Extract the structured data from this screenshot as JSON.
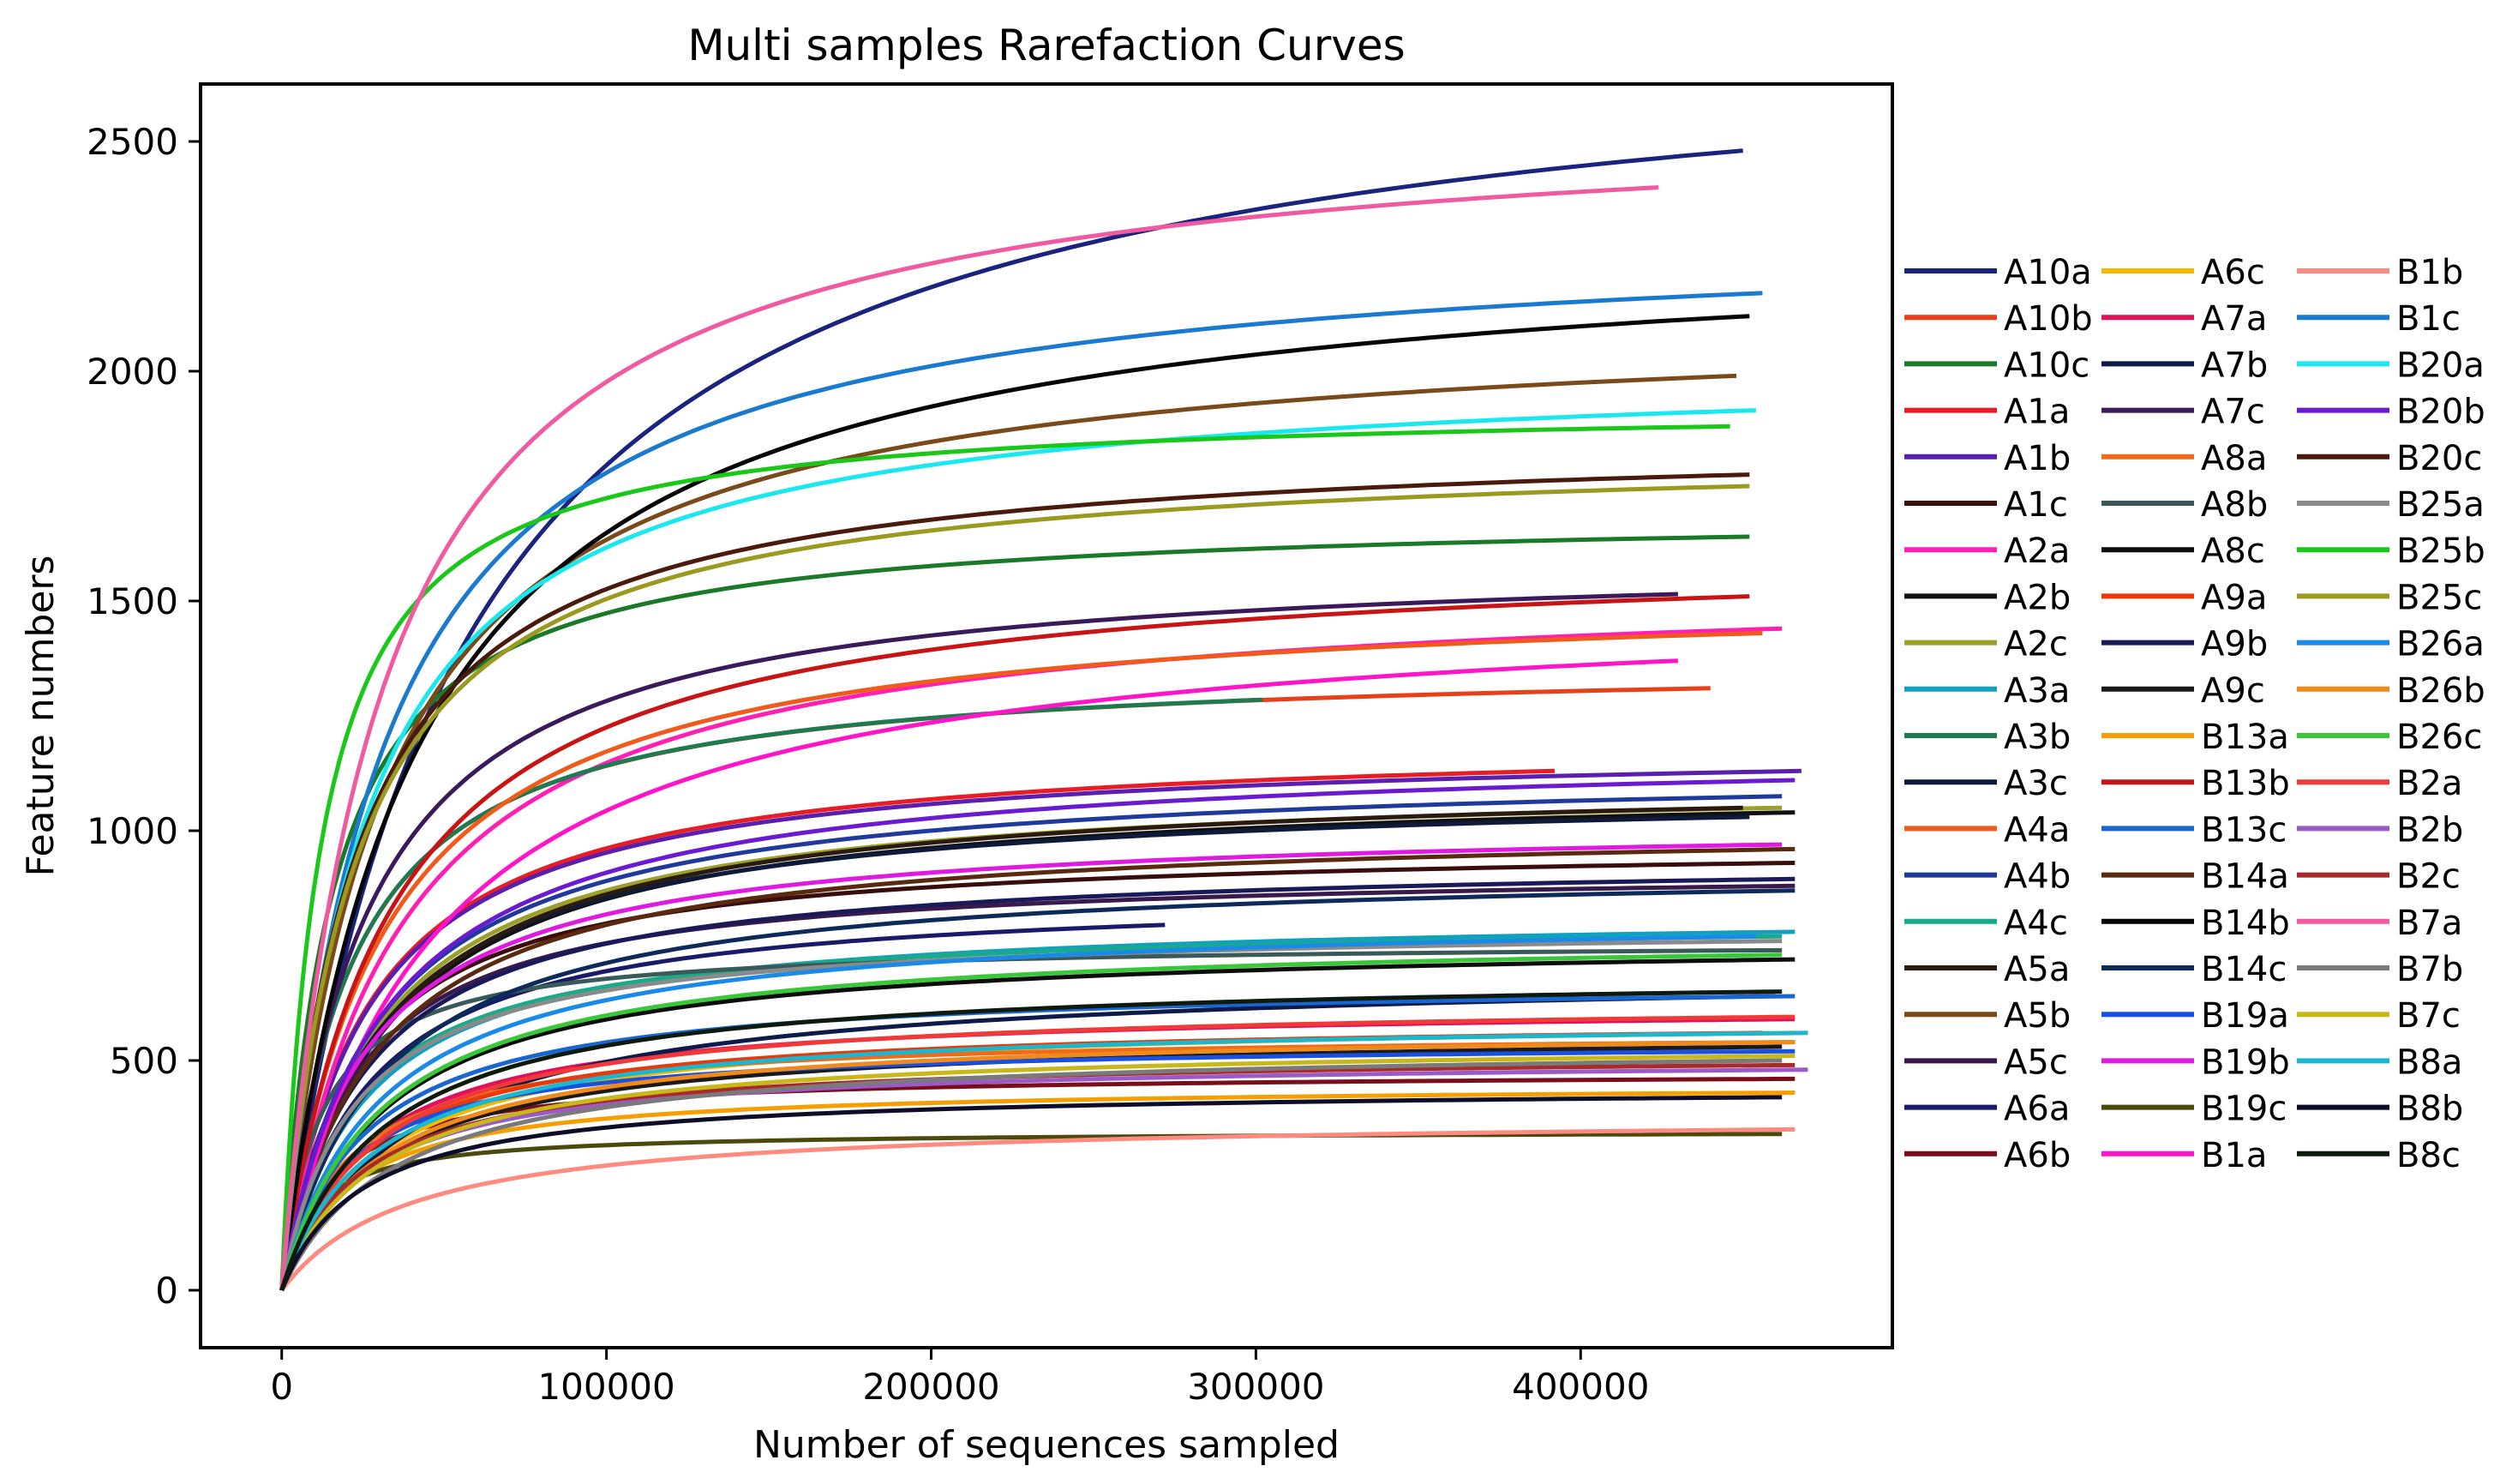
{
  "chart_data": {
    "type": "line",
    "title": "Multi samples Rarefaction Curves",
    "xlabel": "Number of sequences sampled",
    "ylabel": "Feature numbers",
    "xlim": [
      -25000,
      496000
    ],
    "ylim": [
      -125,
      2625
    ],
    "xticks": [
      0,
      100000,
      200000,
      300000,
      400000
    ],
    "xtick_labels": [
      "0",
      "100000",
      "200000",
      "300000",
      "400000"
    ],
    "yticks": [
      0,
      500,
      1000,
      1500,
      2000,
      2500
    ],
    "ytick_labels": [
      "0",
      "500",
      "1000",
      "1500",
      "2000",
      "2500"
    ],
    "grid": false,
    "legend_position": "right",
    "series": [
      {
        "name": "A10a",
        "color": "#1a237e",
        "max_x": 450000,
        "final_y": 2480,
        "k": 55000
      },
      {
        "name": "A10b",
        "color": "#e8401a",
        "max_x": 440000,
        "final_y": 1310,
        "k": 20000
      },
      {
        "name": "A10c",
        "color": "#1b7a2a",
        "max_x": 452000,
        "final_y": 1640,
        "k": 15000
      },
      {
        "name": "A1a",
        "color": "#e81c24",
        "max_x": 392000,
        "final_y": 1130,
        "k": 25000
      },
      {
        "name": "A1b",
        "color": "#5b1fb0",
        "max_x": 468000,
        "final_y": 1130,
        "k": 25000
      },
      {
        "name": "A1c",
        "color": "#3a0d0d",
        "max_x": 466000,
        "final_y": 930,
        "k": 22000
      },
      {
        "name": "A2a",
        "color": "#ff1fb2",
        "max_x": 462000,
        "final_y": 1440,
        "k": 35000
      },
      {
        "name": "A2b",
        "color": "#111111",
        "max_x": 466000,
        "final_y": 1040,
        "k": 30000
      },
      {
        "name": "A2c",
        "color": "#9aa02a",
        "max_x": 462000,
        "final_y": 1050,
        "k": 28000
      },
      {
        "name": "A3a",
        "color": "#11a0c0",
        "max_x": 466000,
        "final_y": 780,
        "k": 25000
      },
      {
        "name": "A3b",
        "color": "#1e7a50",
        "max_x": 302000,
        "final_y": 1285,
        "k": 20000
      },
      {
        "name": "A3c",
        "color": "#0d1a3a",
        "max_x": 452000,
        "final_y": 1030,
        "k": 28000
      },
      {
        "name": "A4a",
        "color": "#f05a1a",
        "max_x": 456000,
        "final_y": 1430,
        "k": 30000
      },
      {
        "name": "A4b",
        "color": "#1f3a9a",
        "max_x": 462000,
        "final_y": 1075,
        "k": 28000
      },
      {
        "name": "A4c",
        "color": "#1aaa8a",
        "max_x": 462000,
        "final_y": 770,
        "k": 22000
      },
      {
        "name": "A5a",
        "color": "#2a1a10",
        "max_x": 450000,
        "final_y": 1050,
        "k": 30000
      },
      {
        "name": "A5b",
        "color": "#7a4a1a",
        "max_x": 448000,
        "final_y": 1990,
        "k": 30000
      },
      {
        "name": "A5c",
        "color": "#3a1a4a",
        "max_x": 466000,
        "final_y": 880,
        "k": 22000
      },
      {
        "name": "A6a",
        "color": "#1a1a6a",
        "max_x": 272000,
        "final_y": 795,
        "k": 25000
      },
      {
        "name": "A6b",
        "color": "#7a0d1a",
        "max_x": 466000,
        "final_y": 460,
        "k": 15000
      },
      {
        "name": "A6c",
        "color": "#f5b800",
        "max_x": 466000,
        "final_y": 560,
        "k": 30000
      },
      {
        "name": "A7a",
        "color": "#e0135a",
        "max_x": 466000,
        "final_y": 590,
        "k": 25000
      },
      {
        "name": "A7b",
        "color": "#0d1a4a",
        "max_x": 460000,
        "final_y": 640,
        "k": 40000
      },
      {
        "name": "A7c",
        "color": "#3a1a5a",
        "max_x": 430000,
        "final_y": 1515,
        "k": 25000
      },
      {
        "name": "A8a",
        "color": "#f06a1a",
        "max_x": 466000,
        "final_y": 540,
        "k": 20000
      },
      {
        "name": "A8b",
        "color": "#3a5a5a",
        "max_x": 462000,
        "final_y": 740,
        "k": 12000
      },
      {
        "name": "A8c",
        "color": "#0d0d0d",
        "max_x": 466000,
        "final_y": 720,
        "k": 30000
      },
      {
        "name": "A9a",
        "color": "#e83a0a",
        "max_x": 456000,
        "final_y": 560,
        "k": 25000
      },
      {
        "name": "A9b",
        "color": "#1a1a5a",
        "max_x": 466000,
        "final_y": 895,
        "k": 25000
      },
      {
        "name": "A9c",
        "color": "#1a1a1a",
        "max_x": 462000,
        "final_y": 530,
        "k": 30000
      },
      {
        "name": "B13a",
        "color": "#f5a000",
        "max_x": 466000,
        "final_y": 430,
        "k": 20000
      },
      {
        "name": "B13b",
        "color": "#c81414",
        "max_x": 452000,
        "final_y": 1510,
        "k": 32000
      },
      {
        "name": "B13c",
        "color": "#1a66d0",
        "max_x": 466000,
        "final_y": 640,
        "k": 25000
      },
      {
        "name": "B14a",
        "color": "#5a2a10",
        "max_x": 466000,
        "final_y": 960,
        "k": 28000
      },
      {
        "name": "B14b",
        "color": "#050505",
        "max_x": 452000,
        "final_y": 2120,
        "k": 40000
      },
      {
        "name": "B14c",
        "color": "#0d2a5a",
        "max_x": 466000,
        "final_y": 870,
        "k": 30000
      },
      {
        "name": "B19a",
        "color": "#1a50e0",
        "max_x": 466000,
        "final_y": 520,
        "k": 20000
      },
      {
        "name": "B19b",
        "color": "#e01ae0",
        "max_x": 462000,
        "final_y": 970,
        "k": 25000
      },
      {
        "name": "B19c",
        "color": "#4a4a0d",
        "max_x": 462000,
        "final_y": 340,
        "k": 10000
      },
      {
        "name": "B1a",
        "color": "#ff14c8",
        "max_x": 430000,
        "final_y": 1370,
        "k": 45000
      },
      {
        "name": "B1b",
        "color": "#ff8a80",
        "max_x": 466000,
        "final_y": 350,
        "k": 40000
      },
      {
        "name": "B1c",
        "color": "#1a7ad0",
        "max_x": 456000,
        "final_y": 2170,
        "k": 30000
      },
      {
        "name": "B20a",
        "color": "#1ae8f0",
        "max_x": 454000,
        "final_y": 1915,
        "k": 25000
      },
      {
        "name": "B20b",
        "color": "#6a1ad0",
        "max_x": 466000,
        "final_y": 1110,
        "k": 30000
      },
      {
        "name": "B20c",
        "color": "#4a1a0d",
        "max_x": 452000,
        "final_y": 1775,
        "k": 22000
      },
      {
        "name": "B25a",
        "color": "#8a8a8a",
        "max_x": 462000,
        "final_y": 760,
        "k": 22000
      },
      {
        "name": "B25b",
        "color": "#1ac81a",
        "max_x": 446000,
        "final_y": 1880,
        "k": 12000
      },
      {
        "name": "B25c",
        "color": "#9a9a20",
        "max_x": 452000,
        "final_y": 1750,
        "k": 22000
      },
      {
        "name": "B26a",
        "color": "#1a8ae8",
        "max_x": 454000,
        "final_y": 770,
        "k": 30000
      },
      {
        "name": "B26b",
        "color": "#f08a1a",
        "max_x": 466000,
        "final_y": 540,
        "k": 30000
      },
      {
        "name": "B26c",
        "color": "#3ac83a",
        "max_x": 462000,
        "final_y": 730,
        "k": 30000
      },
      {
        "name": "B2a",
        "color": "#f03a3a",
        "max_x": 466000,
        "final_y": 595,
        "k": 28000
      },
      {
        "name": "B2b",
        "color": "#9a5ac8",
        "max_x": 470000,
        "final_y": 480,
        "k": 25000
      },
      {
        "name": "B2c",
        "color": "#a82a2a",
        "max_x": 466000,
        "final_y": 490,
        "k": 25000
      },
      {
        "name": "B7a",
        "color": "#f05aa0",
        "max_x": 424000,
        "final_y": 2400,
        "k": 30000
      },
      {
        "name": "B7b",
        "color": "#7a7a7a",
        "max_x": 462000,
        "final_y": 500,
        "k": 35000
      },
      {
        "name": "B7c",
        "color": "#c8b81a",
        "max_x": 466000,
        "final_y": 510,
        "k": 30000
      },
      {
        "name": "B8a",
        "color": "#1ab8d0",
        "max_x": 470000,
        "final_y": 560,
        "k": 28000
      },
      {
        "name": "B8b",
        "color": "#0d0d2a",
        "max_x": 462000,
        "final_y": 420,
        "k": 25000
      },
      {
        "name": "B8c",
        "color": "#0d1a0d",
        "max_x": 462000,
        "final_y": 650,
        "k": 30000
      }
    ]
  }
}
